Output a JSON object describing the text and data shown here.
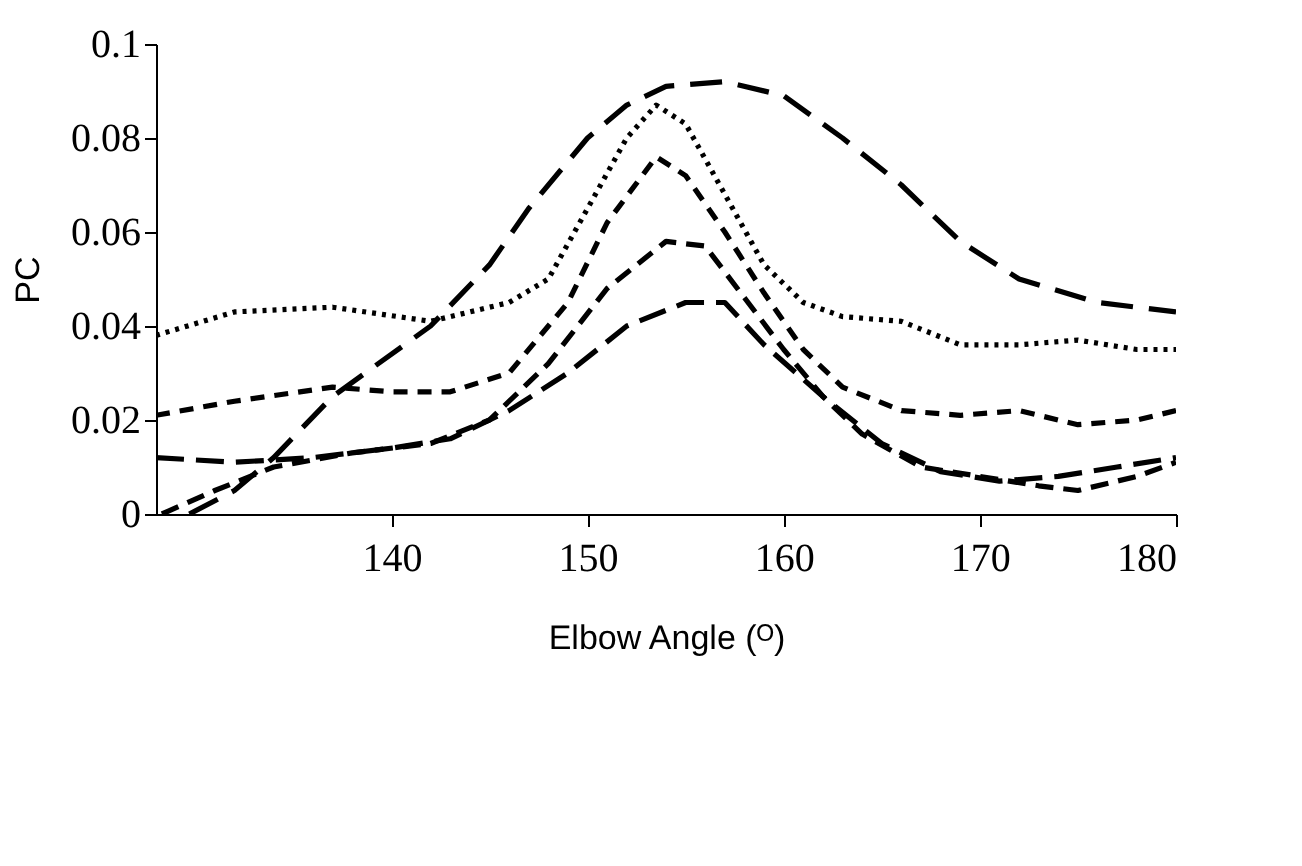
{
  "chart_data": {
    "type": "line",
    "xlabel": "Elbow Angle (ᴼ)",
    "ylabel": "PC",
    "xlim": [
      128,
      180
    ],
    "ylim": [
      0,
      0.1
    ],
    "xticks": [
      140,
      150,
      160,
      170,
      180
    ],
    "yticks": [
      0,
      0.02,
      0.04,
      0.06,
      0.08,
      0.1
    ],
    "grid": false,
    "marker": "none",
    "series": [
      {
        "color": "#000000",
        "line_style": "dashed",
        "x": [
          129.7,
          132,
          134,
          137,
          142,
          145,
          147,
          150,
          152,
          154,
          157,
          160,
          163,
          166,
          169,
          172,
          176,
          180
        ],
        "values": [
          0,
          0.005,
          0.012,
          0.025,
          0.04,
          0.053,
          0.065,
          0.08,
          0.087,
          0.091,
          0.092,
          0.089,
          0.08,
          0.07,
          0.058,
          0.05,
          0.045,
          0.043
        ]
      },
      {
        "color": "#000000",
        "line_style": "dotted",
        "x": [
          128,
          132,
          137,
          142,
          146,
          148,
          150,
          152,
          153.5,
          155,
          157,
          159,
          161,
          163,
          166,
          169,
          172,
          175,
          178,
          180
        ],
        "values": [
          0.038,
          0.043,
          0.044,
          0.041,
          0.045,
          0.05,
          0.065,
          0.08,
          0.087,
          0.083,
          0.068,
          0.053,
          0.045,
          0.042,
          0.041,
          0.036,
          0.036,
          0.037,
          0.035,
          0.035
        ]
      },
      {
        "color": "#000000",
        "line_style": "dashed",
        "x": [
          128,
          132,
          137,
          140,
          143,
          146,
          149,
          151,
          153.5,
          155,
          157,
          159,
          161,
          163,
          166,
          169,
          172,
          175,
          178,
          180
        ],
        "values": [
          0.021,
          0.024,
          0.027,
          0.026,
          0.026,
          0.03,
          0.045,
          0.062,
          0.076,
          0.072,
          0.06,
          0.047,
          0.035,
          0.027,
          0.022,
          0.021,
          0.022,
          0.019,
          0.02,
          0.022
        ]
      },
      {
        "color": "#000000",
        "line_style": "dashed",
        "x": [
          128,
          132,
          136,
          140,
          143,
          146,
          149,
          152,
          155,
          157,
          159,
          162,
          165,
          168,
          171,
          174,
          177,
          180
        ],
        "values": [
          0.012,
          0.011,
          0.012,
          0.014,
          0.016,
          0.022,
          0.03,
          0.04,
          0.045,
          0.045,
          0.036,
          0.025,
          0.015,
          0.009,
          0.007,
          0.008,
          0.01,
          0.012
        ]
      },
      {
        "color": "#000000",
        "line_style": "dashed",
        "x": [
          128.3,
          131,
          134,
          138,
          142,
          145,
          148,
          151,
          154,
          156,
          158,
          160,
          162,
          164,
          167,
          170,
          173,
          175,
          178,
          180
        ],
        "values": [
          0,
          0.005,
          0.01,
          0.013,
          0.015,
          0.02,
          0.032,
          0.048,
          0.058,
          0.057,
          0.046,
          0.035,
          0.025,
          0.017,
          0.01,
          0.008,
          0.006,
          0.005,
          0.008,
          0.011
        ]
      }
    ]
  }
}
